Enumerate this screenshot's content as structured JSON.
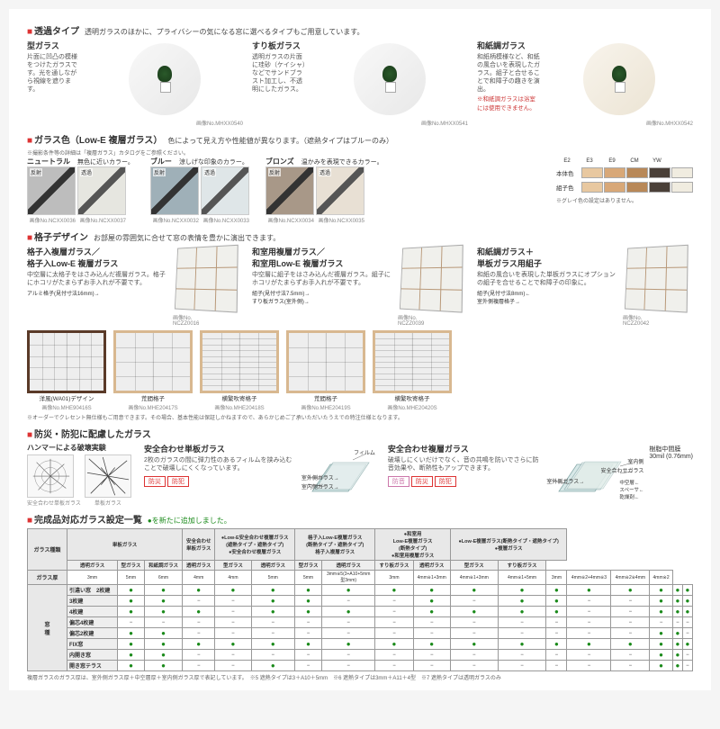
{
  "sections": {
    "transparency": {
      "title": "透過タイプ",
      "subtitle": "透明ガラスのほかに、プライバシーの気になる窓に選べるタイプもご用意しています。",
      "items": [
        {
          "name": "型ガラス",
          "desc": "片面に凹凸の模様をつけたガラスです。光を通しながら視線を遮ります。",
          "caption": "画像No.MHXX0540"
        },
        {
          "name": "すり板ガラス",
          "desc": "透明ガラスの片面に珪砂（ケイシャ）などでサンドブラスト加工し、不透明にしたガラス。",
          "caption": "画像No.MHXX0541"
        },
        {
          "name": "和紙調ガラス",
          "desc": "和紙柄模様など、和紙の風合いを表現したガラス。組子と合せることで和障子の趣きを演出。",
          "note": "※和紙調ガラスは浴室には使用できません。",
          "caption": "画像No.MHXX0542"
        }
      ]
    },
    "color": {
      "title": "ガラス色（Low-E 複層ガラス）",
      "subtitle": "色によって見え方や性能値が異なります。（遮熱タイプはブルーのみ）",
      "note": "※撮影条件等の詳細は「複層ガラス」カタログをご参照ください。",
      "groups": [
        {
          "name": "ニュートラル",
          "desc": "無色に近いカラー。",
          "a": "#bdbdbd",
          "b": "#e6e6e0",
          "cap_a": "画像No.NCXX0036",
          "cap_b": "画像No.NCXX0037",
          "la": "反射",
          "lb": "透過"
        },
        {
          "name": "ブルー",
          "desc": "涼しげな印象のカラー。",
          "a": "#9fb0b8",
          "b": "#dfe6e8",
          "cap_a": "画像No.NCXX0032",
          "cap_b": "画像No.NCXX0033",
          "la": "反射",
          "lb": "透過"
        },
        {
          "name": "ブロンズ",
          "desc": "温かみを表現できるカラー。",
          "a": "#a89888",
          "b": "#e8e0d4",
          "cap_a": "画像No.NCXX0034",
          "cap_b": "画像No.NCXX0035",
          "la": "反射",
          "lb": "透過"
        }
      ],
      "palette_labels": [
        "E2",
        "E3",
        "E9",
        "CM",
        "YW"
      ],
      "palette_rows": [
        {
          "label": "本体色",
          "colors": [
            "#e8c8a0",
            "#d8a878",
            "#b88858",
            "#4a4038",
            "#f0ece0"
          ]
        },
        {
          "label": "組子色",
          "colors": [
            "#e8c8a0",
            "#d8a878",
            "#b88858",
            "#4a4038",
            "#f0ece0"
          ]
        }
      ],
      "palette_note": "※グレイ色の設定はありません。"
    },
    "lattice": {
      "title": "格子デザイン",
      "subtitle": "お部屋の雰囲気に合せて窓の表情を豊かに演出できます。",
      "top": [
        {
          "name": "格子入複層ガラス／\n格子入Low-E 複層ガラス",
          "desc": "中空層に太格子をはさみ込んだ複層ガラス。格子にホコリがたまらずお手入れが不要です。",
          "sub": "アルミ格子(見付寸法16mm)→",
          "cap": "画像No.\nNCZZ0016"
        },
        {
          "name": "和室用複層ガラス／\n和室用Low-E 複層ガラス",
          "desc": "中空層に組子をはさみ込んだ複層ガラス。組子にホコリがたまらずお手入れが不要です。",
          "sub": "組子(見付寸法7.5mm)→\nすり板ガラス(室外側)→",
          "cap": "画像No.\nNCZZ0039"
        },
        {
          "name": "和紙調ガラス＋\n単板ガラス用組子",
          "desc": "和紙の風合いを表現した単板ガラスにオプションの組子を合せることで和障子の印象に。",
          "sub": "組子(見付寸法8mm)←\n室外側複層格子→",
          "cap": "画像No.\nNCZZ0042"
        }
      ],
      "bottom": [
        {
          "label": "洋風(WA01)デザイン",
          "frame": "#5a3a28",
          "grid": "wa01",
          "cap": "画像No.MHE90416S"
        },
        {
          "label": "荒間格子",
          "frame": "#d8b890",
          "grid": "arama",
          "cap": "画像No.MHE20417S"
        },
        {
          "label": "横繁吹寄格子",
          "frame": "#d8b890",
          "grid": "yoko",
          "cap": "画像No.MHE20418S"
        },
        {
          "label": "荒間格子",
          "frame": "#d8b890",
          "grid": "arama",
          "cap": "画像No.MHE20419S"
        },
        {
          "label": "横繁吹寄格子",
          "frame": "#d8b890",
          "grid": "yoko",
          "cap": "画像No.MHE20420S"
        }
      ],
      "order_note": "※オーダーでクレセント無仕様もご用意できます。その場合、基本性能は保証しかねますので、あらかじめご了承いただいたうえでの特注仕様となります。"
    },
    "safety": {
      "title": "防災・防犯に配慮したガラス",
      "hammer": "ハンマーによる破壊実験",
      "hammer_a": "安全合わせ単板ガラス",
      "hammer_b": "単板ガラス",
      "left": {
        "name": "安全合わせ単板ガラス",
        "desc": "2枚のガラスの間に弾力性のあるフィルムを挟み込むことで破壊しにくくなっています。",
        "labels": [
          "フィルム",
          "室外側ガラス→",
          "室内側ガラス→"
        ],
        "tags": [
          "防災",
          "防犯"
        ],
        "tag_colors": [
          "#d33",
          "#d33"
        ]
      },
      "right": {
        "name": "安全合わせ複層ガラス",
        "desc": "破壊しにくいだけでなく、音の共鳴を防いでさらに防音効果や、断熱性もアップできます。",
        "labels": [
          "室内側",
          "安全合わせガラス",
          "室外側ガラス→",
          "中空層←\nスペーサ←\n乾燥剤←"
        ],
        "tags": [
          "防音",
          "防災",
          "防犯"
        ],
        "tag_colors": [
          "#c7a",
          "#d33",
          "#d33"
        ],
        "resin": "樹脂中間膜\n30mil (0.76mm)"
      }
    },
    "table": {
      "title": "完成品対応ガラス設定一覧",
      "added": "●を新たに追加しました。",
      "hdr_top": [
        "ガラス種類",
        "単板ガラス",
        "安全合わせ\n単板ガラス",
        "●Low-E安全合わせ複層ガラス\n(遮熱タイプ・遮熱タイプ)\n●安全合わせ複層ガラス",
        "格子入Low-E複層ガラス\n(断熱タイプ・遮熱タイプ)\n格子入複層ガラス",
        "●和室用\nLow-E複層ガラス\n(断熱タイプ)\n●和室用複層ガラス",
        "●Low-E複層ガラス(断熱タイプ・遮熱タイプ)\n●複層ガラス"
      ],
      "hdr_sub": [
        "",
        "透明ガラス",
        "型ガラス",
        "和紙調ガラス",
        "透明ガラス",
        "型ガラス",
        "透明ガラス",
        "型ガラス",
        "透明ガラス",
        "すり板ガラス",
        "透明ガラス",
        "型ガラス",
        "すり板ガラス"
      ],
      "thickness_label": "ガラス厚",
      "thickness": [
        "",
        "3mm",
        "5mm",
        "6mm",
        "4mm",
        "4mm",
        "5mm",
        "5mm",
        "3mm※5(3+A10+5mm\n型3mm)",
        "3mm",
        "4mm※1+3mm",
        "4mm※1+3mm",
        "4mm※1+5mm",
        "3mm",
        "4mm※2+4mm※3",
        "4mm※2※4mm",
        "4mm※2"
      ],
      "rowgroup": "窓\n種",
      "rows": [
        {
          "name": "引違い窓",
          "sub": "2枚建",
          "cells": [
            "●",
            "●",
            "●",
            "●",
            "●",
            "●",
            "●",
            "●",
            "●",
            "●",
            "●",
            "●",
            "●",
            "●",
            "●",
            "●",
            "●"
          ]
        },
        {
          "name": "",
          "sub": "3枚建",
          "cells": [
            "●",
            "●",
            "−",
            "−",
            "●",
            "●",
            "−",
            "−",
            "●",
            "−",
            "●",
            "●",
            "−",
            "−",
            "●",
            "●",
            "●"
          ]
        },
        {
          "name": "",
          "sub": "4枚建",
          "cells": [
            "●",
            "●",
            "●",
            "−",
            "●",
            "●",
            "●",
            "−",
            "●",
            "●",
            "●",
            "●",
            "−",
            "−",
            "●",
            "●",
            "●"
          ]
        },
        {
          "name": "",
          "sub": "偏芯4枚建",
          "cells": [
            "−",
            "−",
            "−",
            "−",
            "−",
            "−",
            "−",
            "−",
            "−",
            "−",
            "−",
            "−",
            "−",
            "−",
            "−",
            "−",
            "−"
          ]
        },
        {
          "name": "",
          "sub": "偏芯2枚建",
          "cells": [
            "●",
            "●",
            "−",
            "−",
            "−",
            "−",
            "−",
            "−",
            "−",
            "−",
            "−",
            "−",
            "−",
            "−",
            "●",
            "●",
            "−"
          ]
        },
        {
          "name": "FIX窓",
          "sub": "",
          "cells": [
            "●",
            "●",
            "●",
            "●",
            "●",
            "●",
            "●",
            "●",
            "●",
            "●",
            "●",
            "●",
            "●",
            "●",
            "●",
            "●",
            "●"
          ]
        },
        {
          "name": "内開き窓",
          "sub": "",
          "cells": [
            "●",
            "●",
            "−",
            "−",
            "−",
            "−",
            "−",
            "−",
            "−",
            "−",
            "−",
            "−",
            "−",
            "−",
            "●",
            "●",
            "−"
          ]
        },
        {
          "name": "開き窓テラス",
          "sub": "",
          "cells": [
            "●",
            "●",
            "−",
            "−",
            "●",
            "−",
            "−",
            "−",
            "−",
            "−",
            "−",
            "−",
            "−",
            "−",
            "●",
            "●",
            "−"
          ]
        }
      ],
      "footnote": "複層ガラスのガラス厚は、室外側ガラス厚＋中空層厚＋室内側ガラス厚で表記しています。　※5 遮熱タイプは3＋A10＋5mm　※6 遮熱タイプは3mm＋A11＋4型　※7 遮熱タイプは透明ガラスのみ"
    }
  }
}
